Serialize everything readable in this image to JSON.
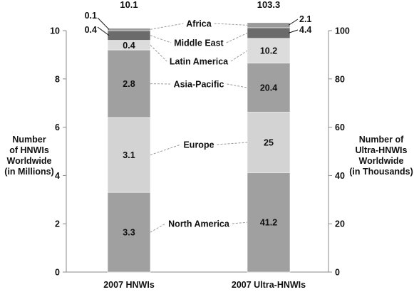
{
  "chart_data": {
    "type": "stacked-bar",
    "categories": [
      "2007 HNWIs",
      "2007 Ultra-HNWIs"
    ],
    "totals": [
      "10.1",
      "103.3"
    ],
    "segments": [
      {
        "name": "North America",
        "values": [
          3.3,
          41.2
        ],
        "labels": [
          "3.3",
          "41.2"
        ],
        "color": "#a0a0a0"
      },
      {
        "name": "Europe",
        "values": [
          3.1,
          25
        ],
        "labels": [
          "3.1",
          "25"
        ],
        "color": "#d3d3d3"
      },
      {
        "name": "Asia-Pacific",
        "values": [
          2.8,
          20.4
        ],
        "labels": [
          "2.8",
          "20.4"
        ],
        "color": "#a0a0a0"
      },
      {
        "name": "Latin America",
        "values": [
          0.4,
          10.2
        ],
        "labels": [
          "0.4",
          "10.2"
        ],
        "color": "#dcdcdc"
      },
      {
        "name": "Middle East",
        "values": [
          0.4,
          4.4
        ],
        "labels": [
          "0.4",
          "4.4"
        ],
        "color": "#6b6b6b"
      },
      {
        "name": "Africa",
        "values": [
          0.1,
          2.1
        ],
        "labels": [
          "0.1",
          "2.1"
        ],
        "color": "#9a9a9a"
      }
    ],
    "left_axis": {
      "label_lines": [
        "Number",
        "of HNWIs",
        "Worldwide",
        "(in Millions)"
      ],
      "ylim": [
        0,
        10
      ],
      "ticks": [
        0,
        2,
        4,
        6,
        8,
        10
      ]
    },
    "right_axis": {
      "label_lines": [
        "Number of",
        "Ultra-HNWIs",
        "Worldwide",
        "(in Thousands)"
      ],
      "ylim": [
        0,
        100
      ],
      "ticks": [
        0,
        20,
        40,
        60,
        80,
        100
      ]
    },
    "grid": false
  }
}
